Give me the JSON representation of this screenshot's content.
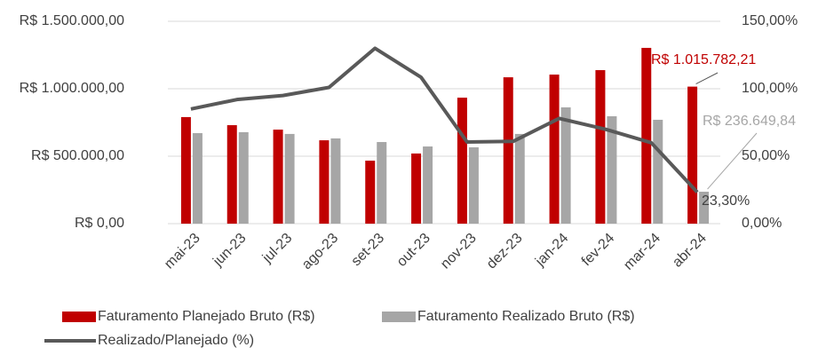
{
  "chart_data": {
    "type": "bar_line",
    "categories": [
      "mai-23",
      "jun-23",
      "jul-23",
      "ago-23",
      "set-23",
      "out-23",
      "nov-23",
      "dez-23",
      "jan-24",
      "fev-24",
      "mar-24",
      "abr-24"
    ],
    "series": [
      {
        "name": "Faturamento Planejado Bruto (R$)",
        "type": "bar",
        "color": "#c00000",
        "values": [
          790000,
          730000,
          697000,
          618000,
          467000,
          520000,
          934000,
          1085000,
          1105000,
          1138000,
          1303000,
          1015782.21
        ],
        "value_labels": [
          null,
          null,
          null,
          null,
          null,
          null,
          null,
          null,
          null,
          null,
          null,
          "R$ 1.015.782,21"
        ]
      },
      {
        "name": "Faturamento Realizado Bruto (R$)",
        "type": "bar",
        "color": "#a6a6a6",
        "values": [
          671000,
          678000,
          665000,
          632000,
          605000,
          572000,
          566000,
          665000,
          862000,
          796000,
          770000,
          236649.84
        ],
        "value_labels": [
          null,
          null,
          null,
          null,
          null,
          null,
          null,
          null,
          null,
          null,
          null,
          "R$ 236.649,84"
        ]
      },
      {
        "name": "Realizado/Planejado (%)",
        "type": "line",
        "axis": "y2",
        "color": "#595959",
        "values": [
          85,
          92,
          95,
          101,
          130,
          108.5,
          60.5,
          61,
          78,
          70,
          60,
          23.3
        ],
        "value_labels": [
          null,
          null,
          null,
          null,
          null,
          null,
          null,
          null,
          null,
          null,
          null,
          "23,30%"
        ]
      }
    ],
    "ylim": [
      0,
      1500000
    ],
    "yticks": [
      {
        "value": 0,
        "label": "R$ 0,00"
      },
      {
        "value": 500000,
        "label": "R$ 500.000,00"
      },
      {
        "value": 1000000,
        "label": "R$ 1.000.000,00"
      },
      {
        "value": 1500000,
        "label": "R$ 1.500.000,00"
      }
    ],
    "y2lim": [
      0,
      150
    ],
    "y2ticks": [
      {
        "value": 0,
        "label": "0,00%"
      },
      {
        "value": 50,
        "label": "50,00%"
      },
      {
        "value": 100,
        "label": "100,00%"
      },
      {
        "value": 150,
        "label": "150,00%"
      }
    ],
    "grid": true,
    "legend": "bottom"
  }
}
